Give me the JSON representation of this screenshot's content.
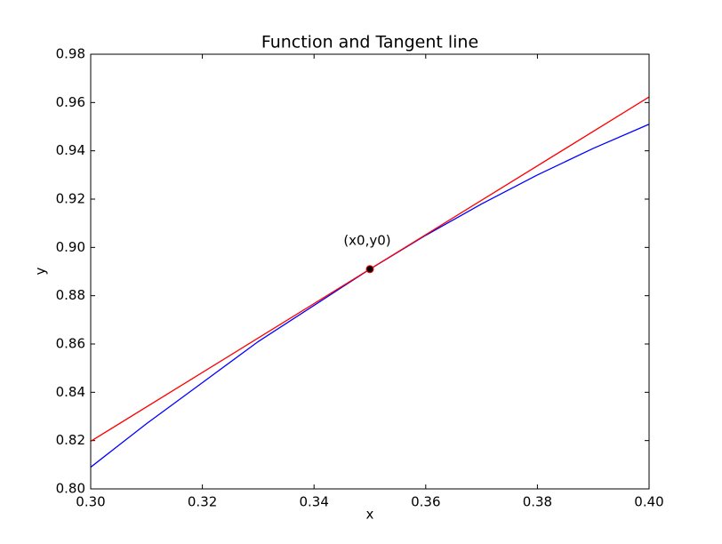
{
  "chart_data": {
    "type": "line",
    "title": "Function and Tangent line",
    "x_label": "x",
    "y_label": "y",
    "series": [
      {
        "color": "#0000ff",
        "x": [
          0.3,
          0.31,
          0.32,
          0.33,
          0.34,
          0.35,
          0.36,
          0.37,
          0.38,
          0.39,
          0.4
        ],
        "values": [
          0.809,
          0.827,
          0.844,
          0.861,
          0.876,
          0.891,
          0.905,
          0.918,
          0.93,
          0.941,
          0.951
        ]
      },
      {
        "color": "#ff0000",
        "x": [
          0.3,
          0.4
        ],
        "values": [
          0.8197,
          0.9623
        ]
      }
    ],
    "marker": {
      "x": 0.35,
      "y": 0.891,
      "color": "#000000",
      "edge_color": "#ff0000"
    },
    "annotation": "(x0,y0)",
    "xlim": [
      0.3,
      0.4
    ],
    "xticks": [
      {
        "value": 0.3,
        "label": "0.30"
      },
      {
        "value": 0.32,
        "label": "0.32"
      },
      {
        "value": 0.34,
        "label": "0.34"
      },
      {
        "value": 0.36,
        "label": "0.36"
      },
      {
        "value": 0.38,
        "label": "0.38"
      },
      {
        "value": 0.4,
        "label": "0.40"
      }
    ],
    "ylim": [
      0.8,
      0.98
    ],
    "yticks": [
      {
        "value": 0.8,
        "label": "0.80"
      },
      {
        "value": 0.82,
        "label": "0.82"
      },
      {
        "value": 0.84,
        "label": "0.84"
      },
      {
        "value": 0.86,
        "label": "0.86"
      },
      {
        "value": 0.88,
        "label": "0.88"
      },
      {
        "value": 0.9,
        "label": "0.90"
      },
      {
        "value": 0.92,
        "label": "0.92"
      },
      {
        "value": 0.94,
        "label": "0.94"
      },
      {
        "value": 0.96,
        "label": "0.96"
      },
      {
        "value": 0.98,
        "label": "0.98"
      }
    ],
    "grid": false
  }
}
